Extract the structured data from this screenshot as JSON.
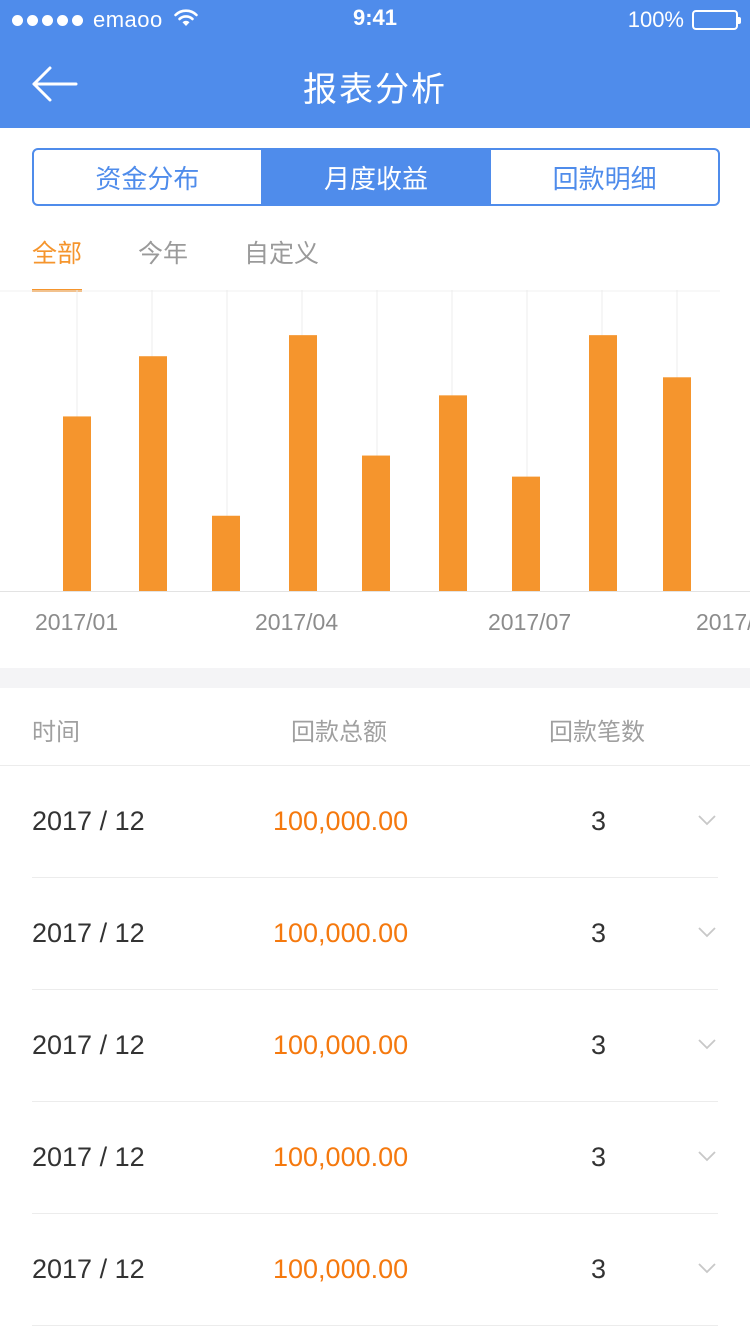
{
  "statusbar": {
    "carrier": "emaoo",
    "time": "9:41",
    "battery": "100%"
  },
  "header": {
    "title": "报表分析",
    "back_icon": "arrow-left-icon"
  },
  "segments": [
    {
      "label": "资金分布",
      "active": false
    },
    {
      "label": "月度收益",
      "active": true
    },
    {
      "label": "回款明细",
      "active": false
    }
  ],
  "filters": [
    {
      "label": "全部",
      "active": true
    },
    {
      "label": "今年",
      "active": false
    },
    {
      "label": "自定义",
      "active": false
    }
  ],
  "colors": {
    "primary": "#4f8ceb",
    "accent": "#f5952d",
    "amount": "#f5790e"
  },
  "chart_data": {
    "type": "bar",
    "x_tick_labels": [
      "2017/01",
      "2017/04",
      "2017/07",
      "2017/"
    ],
    "values": [
      58,
      78,
      25,
      85,
      45,
      65,
      38,
      85,
      71
    ],
    "ylim": [
      0,
      100
    ],
    "color": "#f5952d",
    "grid": true
  },
  "table": {
    "headers": {
      "time": "时间",
      "amount": "回款总额",
      "count": "回款笔数"
    },
    "rows": [
      {
        "time": "2017 / 12",
        "amount": "100,000.00",
        "count": "3"
      },
      {
        "time": "2017 / 12",
        "amount": "100,000.00",
        "count": "3"
      },
      {
        "time": "2017 / 12",
        "amount": "100,000.00",
        "count": "3"
      },
      {
        "time": "2017 / 12",
        "amount": "100,000.00",
        "count": "3"
      },
      {
        "time": "2017 / 12",
        "amount": "100,000.00",
        "count": "3"
      }
    ]
  }
}
